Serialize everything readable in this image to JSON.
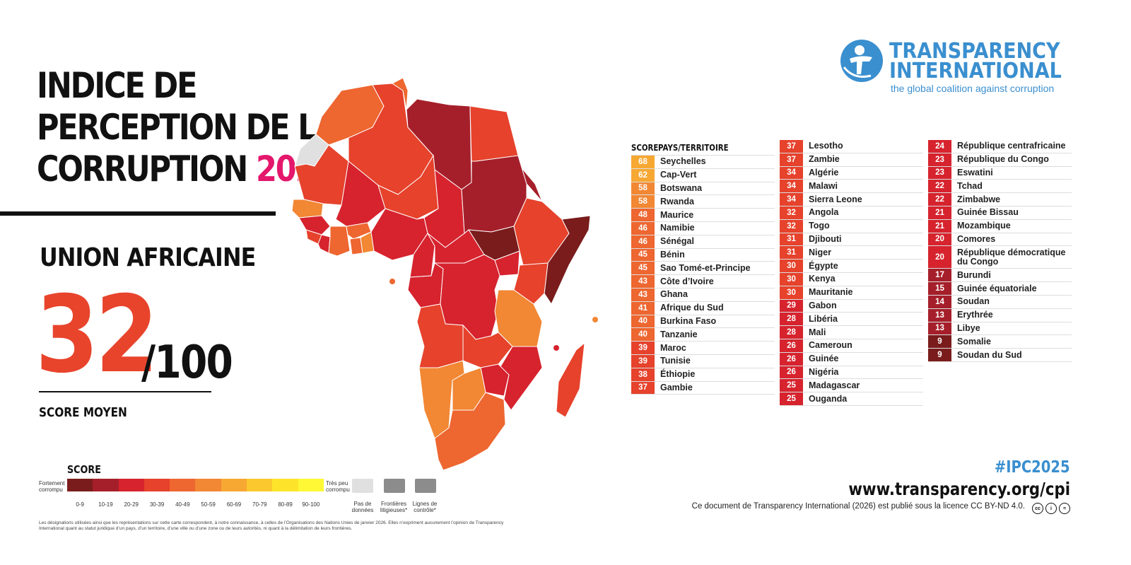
{
  "title": {
    "line1": "INDICE DE",
    "line2": "PERCEPTION DE LA",
    "line3_prefix": "CORRUPTION ",
    "year": "2025"
  },
  "region": "UNION AFRICAINE",
  "average": {
    "score": "32",
    "max": "/100",
    "label": "SCORE MOYEN"
  },
  "logo": {
    "line1": "TRANSPARENCY",
    "line2": "INTERNATIONAL",
    "tagline": "the global coalition against corruption"
  },
  "table": {
    "header_score": "SCORE",
    "header_country": "PAYS/TERRITOIRE",
    "rows": [
      {
        "score": "68",
        "name": "Seychelles"
      },
      {
        "score": "62",
        "name": "Cap-Vert"
      },
      {
        "score": "58",
        "name": "Botswana"
      },
      {
        "score": "58",
        "name": "Rwanda"
      },
      {
        "score": "48",
        "name": "Maurice"
      },
      {
        "score": "46",
        "name": "Namibie"
      },
      {
        "score": "46",
        "name": "Sénégal"
      },
      {
        "score": "45",
        "name": "Bénin"
      },
      {
        "score": "45",
        "name": "Sao Tomé-et-Principe"
      },
      {
        "score": "43",
        "name": "Côte d’Ivoire"
      },
      {
        "score": "43",
        "name": "Ghana"
      },
      {
        "score": "41",
        "name": "Afrique du Sud"
      },
      {
        "score": "40",
        "name": "Burkina Faso"
      },
      {
        "score": "40",
        "name": "Tanzanie"
      },
      {
        "score": "39",
        "name": "Maroc"
      },
      {
        "score": "39",
        "name": "Tunisie"
      },
      {
        "score": "38",
        "name": "Éthiopie"
      },
      {
        "score": "37",
        "name": "Gambie"
      },
      {
        "score": "37",
        "name": "Lesotho"
      },
      {
        "score": "37",
        "name": "Zambie"
      },
      {
        "score": "34",
        "name": "Algérie"
      },
      {
        "score": "34",
        "name": "Malawi"
      },
      {
        "score": "34",
        "name": "Sierra Leone"
      },
      {
        "score": "32",
        "name": "Angola"
      },
      {
        "score": "32",
        "name": "Togo"
      },
      {
        "score": "31",
        "name": "Djibouti"
      },
      {
        "score": "31",
        "name": "Niger"
      },
      {
        "score": "30",
        "name": "Égypte"
      },
      {
        "score": "30",
        "name": "Kenya"
      },
      {
        "score": "30",
        "name": "Mauritanie"
      },
      {
        "score": "29",
        "name": "Gabon"
      },
      {
        "score": "28",
        "name": "Libéria"
      },
      {
        "score": "28",
        "name": "Mali"
      },
      {
        "score": "26",
        "name": "Cameroun"
      },
      {
        "score": "26",
        "name": "Guinée"
      },
      {
        "score": "26",
        "name": "Nigéria"
      },
      {
        "score": "25",
        "name": "Madagascar"
      },
      {
        "score": "25",
        "name": "Ouganda"
      },
      {
        "score": "24",
        "name": "République centrafricaine"
      },
      {
        "score": "23",
        "name": "République du Congo"
      },
      {
        "score": "23",
        "name": "Eswatini"
      },
      {
        "score": "22",
        "name": "Tchad"
      },
      {
        "score": "22",
        "name": "Zimbabwe"
      },
      {
        "score": "21",
        "name": "Guinée Bissau"
      },
      {
        "score": "21",
        "name": "Mozambique"
      },
      {
        "score": "20",
        "name": "Comores"
      },
      {
        "score": "20",
        "name": "République démocratique du Congo"
      },
      {
        "score": "17",
        "name": "Burundi"
      },
      {
        "score": "15",
        "name": "Guinée équatoriale"
      },
      {
        "score": "14",
        "name": "Soudan"
      },
      {
        "score": "13",
        "name": "Erythrée"
      },
      {
        "score": "13",
        "name": "Libye"
      },
      {
        "score": "9",
        "name": "Somalie"
      },
      {
        "score": "9",
        "name": "Soudan du Sud"
      }
    ]
  },
  "legend": {
    "title": "SCORE",
    "low_label": "Fortement corrompu",
    "high_label": "Très peu corrompu",
    "ranges": [
      "0-9",
      "10-19",
      "20-29",
      "30-39",
      "40-49",
      "50-59",
      "60-69",
      "70-79",
      "80-89",
      "90-100"
    ],
    "colors": [
      "#7a1c1c",
      "#a51f2a",
      "#d6232e",
      "#e6422c",
      "#ee6630",
      "#f28734",
      "#f7a833",
      "#fbc82d",
      "#fde42a",
      "#fff835"
    ],
    "no_data": "Pas de données",
    "disputed": "Frontières litigieuses*",
    "control": "Lignes de contrôle*"
  },
  "disclaimer": "Les désignations utilisées ainsi que les représentations sur cette carte correspondent, à notre connaissance, à celles de l’Organisations des Nations Unies de janvier 2026. Elles n’expriment aucunement l’opinion de Transparency International quant au statut juridique d’un pays, d’un territoire, d’une ville ou d’une zone ou de leurs autorités, ni quant à la délimitation de leurs frontières.",
  "hashtag": "#IPC2025",
  "url": "www.transparency.org/cpi",
  "license": "Ce document de Transparency International (2026) est publié sous la licence CC BY-ND 4.0."
}
